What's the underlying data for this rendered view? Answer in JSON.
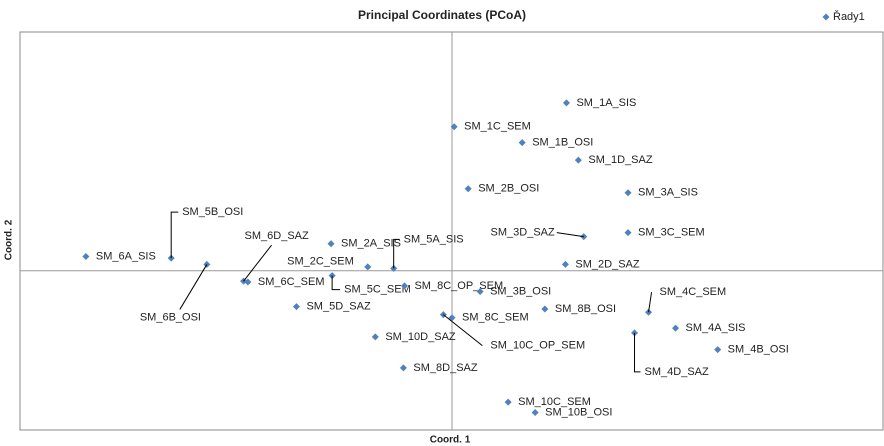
{
  "chart_data": {
    "type": "scatter",
    "title": "Principal Coordinates (PCoA)",
    "x_label": "Coord. 1",
    "y_label": "Coord. 2",
    "xlim": [
      -0.4,
      0.4
    ],
    "ylim": [
      -0.2,
      0.3
    ],
    "legend": "top-right",
    "series": [
      {
        "name": "Řady1",
        "color": "#4f81bd",
        "labels": [
          "SM_1A_SIS",
          "SM_1C_SEM",
          "SM_1B_OSI",
          "SM_1D_SAZ",
          "SM_2B_OSI",
          "SM_3A_SIS",
          "SM_5B_OSI",
          "SM_3D_SAZ",
          "SM_3C_SEM",
          "SM_6D_SAZ",
          "SM_2A_SIS",
          "SM_5A_SIS",
          "SM_6A_SIS",
          "SM_6B_OSI",
          "SM_2C_SEM",
          "SM_2D_SAZ",
          "SM_6C_SEM",
          "SM_5C_SEM",
          "SM_8C_OP_SEM",
          "SM_3B_OSI",
          "SM_8B_OSI",
          "SM_4C_SEM",
          "SM_5D_SAZ",
          "SM_8C_SEM",
          "SM_10C_OP_SEM",
          "SM_4A_SIS",
          "SM_4D_SAZ",
          "SM_10D_SAZ",
          "SM_4B_OSI",
          "SM_8D_SAZ",
          "SM_10C_SEM",
          "SM_10B_OSI"
        ],
        "x": [
          0.106,
          0.002,
          0.065,
          0.117,
          0.015,
          0.163,
          -0.26,
          0.122,
          0.163,
          -0.193,
          -0.112,
          -0.054,
          -0.339,
          -0.227,
          -0.078,
          0.105,
          -0.189,
          -0.111,
          -0.044,
          0.026,
          0.086,
          0.182,
          -0.144,
          0.0,
          -0.008,
          0.207,
          0.169,
          -0.071,
          0.246,
          -0.045,
          0.052,
          0.077
        ],
        "values": [
          0.211,
          0.181,
          0.161,
          0.139,
          0.103,
          0.098,
          0.016,
          0.043,
          0.048,
          -0.013,
          0.034,
          0.003,
          0.018,
          0.008,
          0.005,
          0.008,
          -0.014,
          -0.006,
          -0.019,
          -0.026,
          -0.048,
          -0.052,
          -0.045,
          -0.059,
          -0.055,
          -0.072,
          -0.078,
          -0.083,
          -0.099,
          -0.122,
          -0.165,
          -0.178
        ]
      }
    ]
  }
}
